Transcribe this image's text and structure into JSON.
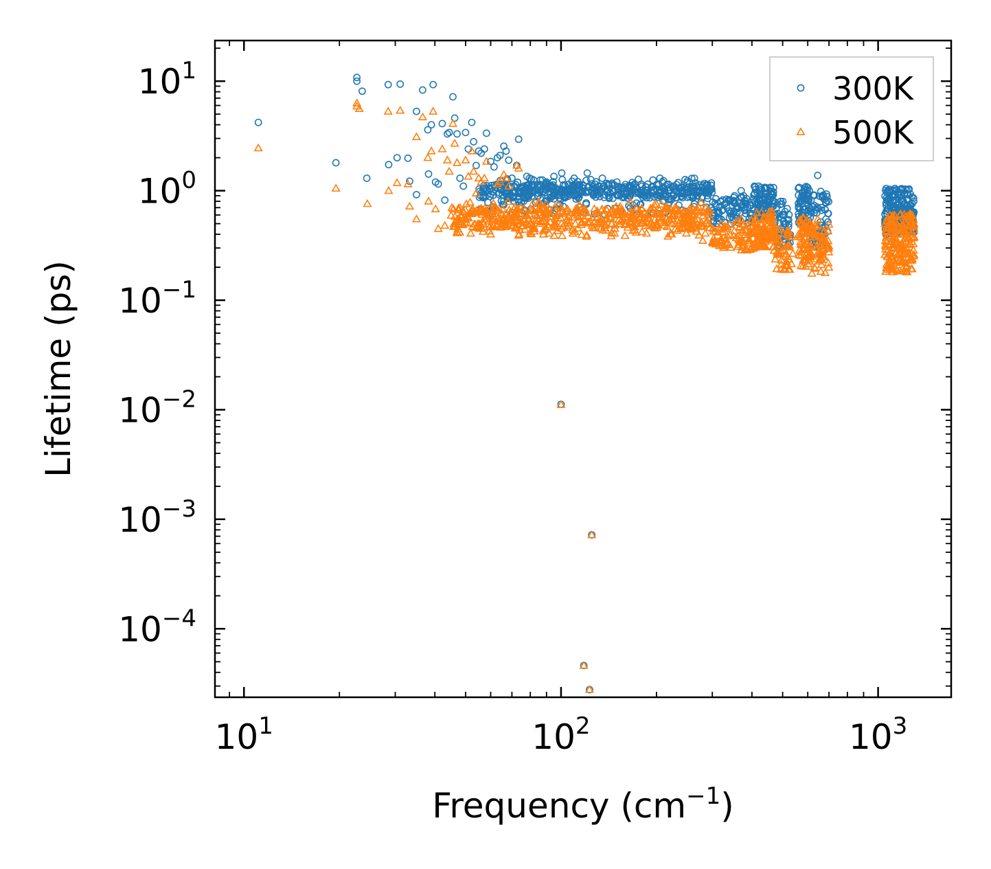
{
  "chart_data": {
    "type": "scatter",
    "title": "",
    "xlabel": "Frequency (cm",
    "xlabel_sup": "−1",
    "xlabel_suffix": ")",
    "ylabel": "Lifetime (ps)",
    "xscale": "log",
    "yscale": "log",
    "xlim": [
      8.1,
      1700
    ],
    "ylim": [
      2.37e-05,
      23.5
    ],
    "x_ticks": [
      {
        "value": 10,
        "base": "10",
        "exp": "1"
      },
      {
        "value": 100,
        "base": "10",
        "exp": "2"
      },
      {
        "value": 1000,
        "base": "10",
        "exp": "3"
      }
    ],
    "y_ticks": [
      {
        "value": 10,
        "base": "10",
        "exp": "1"
      },
      {
        "value": 1,
        "base": "10",
        "exp": "0"
      },
      {
        "value": 0.1,
        "base": "10",
        "exp": "−1"
      },
      {
        "value": 0.01,
        "base": "10",
        "exp": "−2"
      },
      {
        "value": 0.001,
        "base": "10",
        "exp": "−3"
      },
      {
        "value": 0.0001,
        "base": "10",
        "exp": "−4"
      }
    ],
    "legend": {
      "position": "top-right"
    },
    "series": [
      {
        "name": "300K",
        "marker": "circle",
        "color": "#1f77b4",
        "points": [
          [
            11.1,
            4.2
          ],
          [
            19.5,
            1.8
          ],
          [
            22.7,
            10.8
          ],
          [
            22.7,
            10.0
          ],
          [
            23.6,
            8.1
          ],
          [
            24.4,
            1.3
          ],
          [
            28.5,
            9.3
          ],
          [
            28.6,
            1.73
          ],
          [
            30.4,
            2.0
          ],
          [
            31.1,
            9.4
          ],
          [
            32.9,
            1.98
          ],
          [
            33.3,
            1.22
          ],
          [
            35.0,
            5.3
          ],
          [
            35.0,
            0.92
          ],
          [
            36.6,
            8.3
          ],
          [
            38.0,
            3.6
          ],
          [
            38.2,
            1.42
          ],
          [
            39.0,
            4.0
          ],
          [
            39.5,
            9.3
          ],
          [
            40.2,
            1.2
          ],
          [
            41.0,
            1.15
          ],
          [
            42.2,
            4.1
          ],
          [
            43.0,
            0.82
          ],
          [
            43.8,
            3.3
          ],
          [
            44.4,
            3.4
          ],
          [
            45.6,
            7.2
          ],
          [
            46.2,
            4.6
          ],
          [
            47.0,
            3.3
          ],
          [
            48.0,
            1.3
          ],
          [
            49.2,
            1.1
          ],
          [
            50.0,
            3.4
          ],
          [
            51.0,
            2.4
          ],
          [
            52.3,
            4.2
          ],
          [
            53.0,
            2.8
          ],
          [
            54.0,
            1.7
          ],
          [
            55.0,
            2.3
          ],
          [
            56.0,
            2.2
          ],
          [
            57.3,
            2.4
          ],
          [
            58.2,
            3.35
          ],
          [
            60.0,
            1.85
          ],
          [
            61.5,
            1.65
          ],
          [
            63.0,
            2.0
          ],
          [
            64.2,
            2.1
          ],
          [
            66.0,
            2.55
          ],
          [
            67.1,
            2.3
          ],
          [
            68.4,
            1.9
          ],
          [
            70.0,
            1.3
          ],
          [
            72.5,
            1.7
          ],
          [
            73.5,
            2.95
          ],
          [
            78.0,
            1.35
          ],
          [
            79.5,
            1.3
          ],
          [
            82.0,
            1.25
          ],
          [
            86.0,
            1.25
          ],
          [
            90.0,
            1.2
          ],
          [
            95.0,
            1.35
          ],
          [
            100.0,
            0.0112
          ],
          [
            100.5,
            1.45
          ],
          [
            110.0,
            1.3
          ],
          [
            118.0,
            4.62e-05
          ],
          [
            121.0,
            1.45
          ],
          [
            123.0,
            2.78e-05
          ],
          [
            125.0,
            0.00072
          ],
          [
            135.0,
            1.3
          ],
          [
            150.0,
            1.2
          ],
          [
            165.0,
            1.1
          ],
          [
            180.0,
            1.1
          ],
          [
            195.0,
            1.25
          ],
          [
            205.0,
            1.3
          ],
          [
            218.0,
            1.0
          ],
          [
            240.0,
            0.95
          ],
          [
            262.0,
            0.9
          ],
          [
            290.0,
            0.85
          ],
          [
            302.0,
            0.6
          ],
          [
            320.0,
            0.55
          ],
          [
            370.0,
            1.0
          ],
          [
            420.0,
            1.1
          ],
          [
            645.0,
            1.38
          ]
        ],
        "bands": [
          {
            "x": [
              55,
              300
            ],
            "y": [
              0.85,
              1.15
            ],
            "n": 360
          },
          {
            "x": [
              55,
              300
            ],
            "y": [
              0.6,
              1.3
            ],
            "n": 180
          },
          {
            "x": [
              300,
              345
            ],
            "y": [
              0.5,
              0.85
            ],
            "n": 40
          },
          {
            "x": [
              345,
              405
            ],
            "y": [
              0.5,
              0.9
            ],
            "n": 50
          },
          {
            "x": [
              405,
              470
            ],
            "y": [
              0.55,
              1.1
            ],
            "n": 90
          },
          {
            "x": [
              470,
              530
            ],
            "y": [
              0.3,
              0.8
            ],
            "n": 50
          },
          {
            "x": [
              560,
              615
            ],
            "y": [
              0.45,
              1.1
            ],
            "n": 70
          },
          {
            "x": [
              615,
              700
            ],
            "y": [
              0.3,
              1.0
            ],
            "n": 60
          },
          {
            "x": [
              1050,
              1300
            ],
            "y": [
              0.4,
              1.05
            ],
            "n": 200
          }
        ]
      },
      {
        "name": "500K",
        "marker": "triangle",
        "color": "#ff7f0e",
        "points": [
          [
            11.1,
            2.45
          ],
          [
            19.5,
            1.05
          ],
          [
            22.7,
            6.3
          ],
          [
            22.7,
            5.9
          ],
          [
            23.1,
            5.6
          ],
          [
            24.5,
            0.76
          ],
          [
            28.5,
            5.3
          ],
          [
            28.6,
            1.0
          ],
          [
            30.4,
            1.18
          ],
          [
            31.1,
            5.4
          ],
          [
            32.9,
            1.15
          ],
          [
            33.3,
            0.72
          ],
          [
            35.0,
            3.1
          ],
          [
            35.0,
            0.55
          ],
          [
            36.6,
            4.7
          ],
          [
            38.0,
            2.0
          ],
          [
            38.2,
            0.8
          ],
          [
            39.0,
            2.3
          ],
          [
            39.5,
            5.3
          ],
          [
            40.2,
            0.68
          ],
          [
            41.0,
            0.45
          ],
          [
            42.2,
            2.4
          ],
          [
            43.0,
            0.48
          ],
          [
            43.8,
            1.9
          ],
          [
            44.4,
            1.5
          ],
          [
            45.6,
            4.1
          ],
          [
            46.2,
            2.7
          ],
          [
            47.0,
            1.8
          ],
          [
            48.0,
            0.7
          ],
          [
            49.2,
            0.65
          ],
          [
            50.0,
            1.9
          ],
          [
            51.0,
            1.35
          ],
          [
            52.3,
            2.3
          ],
          [
            53.0,
            1.5
          ],
          [
            54.0,
            0.95
          ],
          [
            55.0,
            1.3
          ],
          [
            56.0,
            1.2
          ],
          [
            57.3,
            1.3
          ],
          [
            58.2,
            1.85
          ],
          [
            60.0,
            0.4
          ],
          [
            63.0,
            1.15
          ],
          [
            64.2,
            1.2
          ],
          [
            66.0,
            1.4
          ],
          [
            67.1,
            1.3
          ],
          [
            68.4,
            1.1
          ],
          [
            72.5,
            1.7
          ],
          [
            73.5,
            1.6
          ],
          [
            80.0,
            0.42
          ],
          [
            88.0,
            0.4
          ],
          [
            100.0,
            0.0111
          ],
          [
            118.0,
            4.62e-05
          ],
          [
            123.0,
            2.78e-05
          ],
          [
            125.0,
            0.00072
          ],
          [
            200.0,
            0.75
          ],
          [
            215.0,
            0.7
          ],
          [
            280.0,
            0.35
          ],
          [
            300.0,
            0.34
          ],
          [
            370.0,
            0.55
          ],
          [
            645.0,
            0.55
          ]
        ],
        "bands": [
          {
            "x": [
              45,
              300
            ],
            "y": [
              0.45,
              0.7
            ],
            "n": 360
          },
          {
            "x": [
              45,
              300
            ],
            "y": [
              0.38,
              0.8
            ],
            "n": 180
          },
          {
            "x": [
              300,
              350
            ],
            "y": [
              0.3,
              0.5
            ],
            "n": 40
          },
          {
            "x": [
              350,
              410
            ],
            "y": [
              0.28,
              0.55
            ],
            "n": 50
          },
          {
            "x": [
              410,
              470
            ],
            "y": [
              0.3,
              0.65
            ],
            "n": 90
          },
          {
            "x": [
              470,
              540
            ],
            "y": [
              0.18,
              0.45
            ],
            "n": 50
          },
          {
            "x": [
              560,
              615
            ],
            "y": [
              0.2,
              0.6
            ],
            "n": 70
          },
          {
            "x": [
              615,
              700
            ],
            "y": [
              0.17,
              0.5
            ],
            "n": 60
          },
          {
            "x": [
              1050,
              1300
            ],
            "y": [
              0.18,
              0.62
            ],
            "n": 200
          }
        ]
      }
    ]
  }
}
